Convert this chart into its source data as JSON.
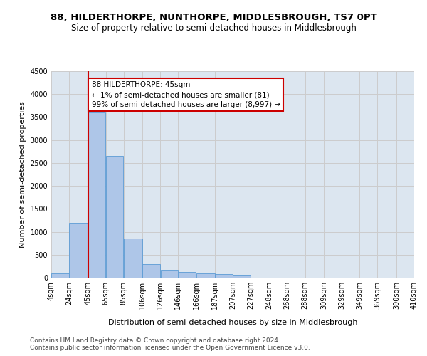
{
  "title": "88, HILDERTHORPE, NUNTHORPE, MIDDLESBROUGH, TS7 0PT",
  "subtitle": "Size of property relative to semi-detached houses in Middlesbrough",
  "xlabel": "Distribution of semi-detached houses by size in Middlesbrough",
  "ylabel": "Number of semi-detached properties",
  "footnote1": "Contains HM Land Registry data © Crown copyright and database right 2024.",
  "footnote2": "Contains public sector information licensed under the Open Government Licence v3.0.",
  "annotation_title": "88 HILDERTHORPE: 45sqm",
  "annotation_line1": "← 1% of semi-detached houses are smaller (81)",
  "annotation_line2": "99% of semi-detached houses are larger (8,997) →",
  "subject_size": 45,
  "bar_edges": [
    4,
    24,
    45,
    65,
    85,
    106,
    126,
    146,
    166,
    187,
    207,
    227,
    248,
    268,
    288,
    309,
    329,
    349,
    369,
    390,
    410
  ],
  "bar_labels": [
    "4sqm",
    "24sqm",
    "45sqm",
    "65sqm",
    "85sqm",
    "106sqm",
    "126sqm",
    "146sqm",
    "166sqm",
    "187sqm",
    "207sqm",
    "227sqm",
    "248sqm",
    "268sqm",
    "288sqm",
    "309sqm",
    "329sqm",
    "349sqm",
    "369sqm",
    "390sqm",
    "410sqm"
  ],
  "bar_values": [
    100,
    1200,
    3600,
    2650,
    850,
    300,
    175,
    130,
    100,
    80,
    55,
    0,
    0,
    0,
    0,
    0,
    0,
    0,
    0,
    0
  ],
  "bar_color": "#aec6e8",
  "bar_edge_color": "#5b9bd5",
  "vline_color": "#cc0000",
  "annotation_box_color": "#cc0000",
  "background_color": "#ffffff",
  "grid_color": "#cccccc",
  "axes_bg_color": "#dce6f0",
  "ylim": [
    0,
    4500
  ],
  "yticks": [
    0,
    500,
    1000,
    1500,
    2000,
    2500,
    3000,
    3500,
    4000,
    4500
  ],
  "title_fontsize": 9.5,
  "subtitle_fontsize": 8.5,
  "axis_label_fontsize": 8,
  "tick_fontsize": 7,
  "annotation_fontsize": 7.5,
  "footnote_fontsize": 6.5
}
